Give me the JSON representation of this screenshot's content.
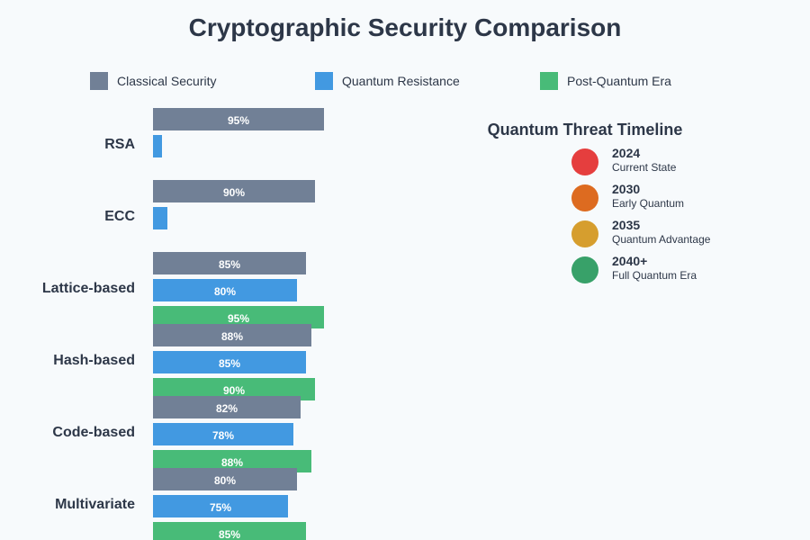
{
  "chart_data": {
    "type": "bar",
    "orientation": "horizontal",
    "title": "Cryptographic Security Comparison",
    "xlabel": "",
    "ylabel": "",
    "xlim": [
      0,
      100
    ],
    "grid": false,
    "legend_position": "top",
    "categories": [
      "RSA",
      "ECC",
      "Lattice-based",
      "Hash-based",
      "Code-based",
      "Multivariate"
    ],
    "series": [
      {
        "name": "Classical Security",
        "color": "#718096",
        "values": [
          95,
          90,
          85,
          88,
          82,
          80
        ],
        "labels": [
          "95%",
          "90%",
          "85%",
          "88%",
          "82%",
          "80%"
        ]
      },
      {
        "name": "Quantum Resistance",
        "color": "#4299e1",
        "values": [
          5,
          8,
          80,
          85,
          78,
          75
        ],
        "labels": [
          "",
          "",
          "80%",
          "85%",
          "78%",
          "75%"
        ]
      },
      {
        "name": "Post-Quantum Era",
        "color": "#48bb78",
        "values": [
          null,
          null,
          95,
          90,
          88,
          85
        ],
        "labels": [
          "",
          "",
          "95%",
          "90%",
          "88%",
          "85%"
        ]
      }
    ]
  },
  "timeline": {
    "title": "Quantum Threat Timeline",
    "items": [
      {
        "year": "2024",
        "desc": "Current State",
        "color": "#e53e3e"
      },
      {
        "year": "2030",
        "desc": "Early Quantum",
        "color": "#dd6b20"
      },
      {
        "year": "2035",
        "desc": "Quantum Advantage",
        "color": "#d69e2e"
      },
      {
        "year": "2040+",
        "desc": "Full Quantum Era",
        "color": "#38a169"
      }
    ]
  }
}
